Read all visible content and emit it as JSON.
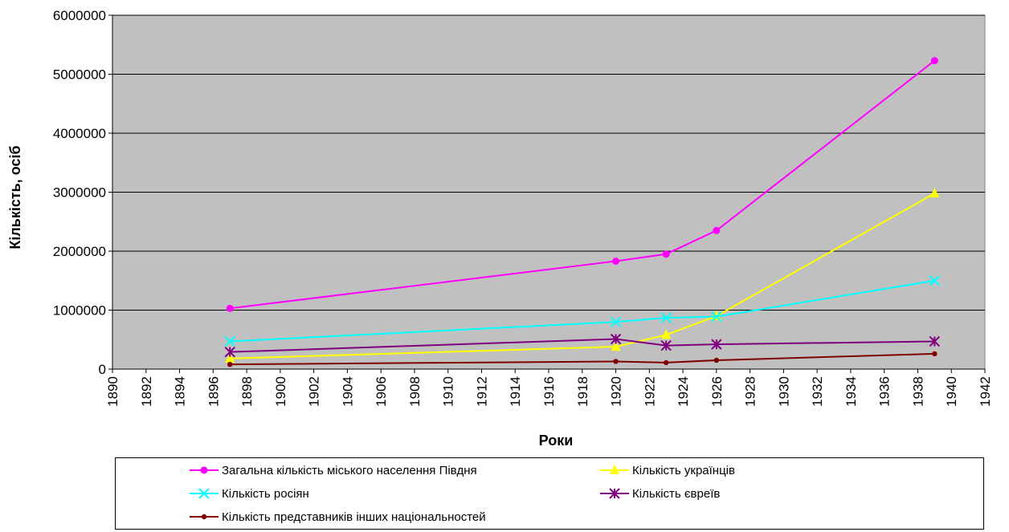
{
  "chart_data": {
    "type": "line",
    "xlabel": "Роки",
    "ylabel": "Кількість, осіб",
    "xlim": [
      1890,
      1942
    ],
    "ylim": [
      0,
      6000000
    ],
    "x_ticks": [
      "1890",
      "1892",
      "1894",
      "1896",
      "1898",
      "1900",
      "1902",
      "1904",
      "1906",
      "1908",
      "1910",
      "1912",
      "1914",
      "1916",
      "1918",
      "1920",
      "1922",
      "1924",
      "1926",
      "1928",
      "1930",
      "1932",
      "1934",
      "1936",
      "1938",
      "1940",
      "1942"
    ],
    "y_ticks": [
      "0",
      "1000000",
      "2000000",
      "3000000",
      "4000000",
      "5000000",
      "6000000"
    ],
    "grid": "horizontal",
    "plot_background": "#c0c0c0",
    "legend_position": "bottom",
    "series": [
      {
        "name": "Загальна кількість міського населення Півдня",
        "color": "#ff00ff",
        "marker": "circle",
        "x": [
          1897,
          1920,
          1923,
          1926,
          1939
        ],
        "y": [
          1030000,
          1830000,
          1950000,
          2350000,
          5230000
        ]
      },
      {
        "name": "Кількість українців",
        "color": "#ffff00",
        "marker": "triangle",
        "x": [
          1897,
          1920,
          1923,
          1926,
          1939
        ],
        "y": [
          180000,
          380000,
          580000,
          900000,
          2980000
        ]
      },
      {
        "name": "Кількість росіян",
        "color": "#00ffff",
        "marker": "x",
        "x": [
          1897,
          1920,
          1923,
          1926,
          1939
        ],
        "y": [
          470000,
          800000,
          870000,
          890000,
          1500000
        ]
      },
      {
        "name": "Кількість євреїв",
        "color": "#800080",
        "marker": "star",
        "x": [
          1897,
          1920,
          1923,
          1926,
          1939
        ],
        "y": [
          290000,
          510000,
          400000,
          420000,
          470000
        ]
      },
      {
        "name": "Кількість представників інших національностей",
        "color": "#800000",
        "marker": "dot",
        "x": [
          1897,
          1920,
          1923,
          1926,
          1939
        ],
        "y": [
          80000,
          130000,
          110000,
          150000,
          260000
        ]
      }
    ]
  }
}
